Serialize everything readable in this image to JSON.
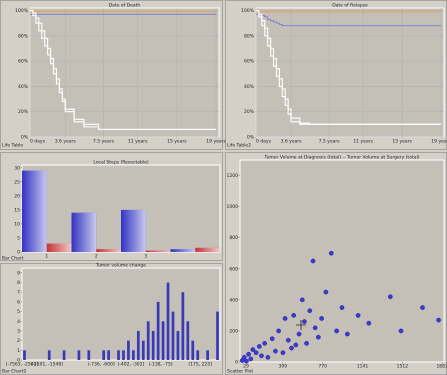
{
  "panels": [
    "Life Table",
    "Life Table2",
    "Bar Chart",
    "Bar Chart2",
    "Scatter Plot"
  ],
  "chart_data": [
    {
      "type": "line",
      "step": true,
      "title": "Date of Death",
      "x": [
        0,
        0.3,
        0.6,
        0.9,
        1.2,
        1.5,
        1.8,
        2.1,
        2.4,
        2.7,
        3,
        3.3,
        3.6,
        4.5,
        5.5,
        7,
        19
      ],
      "series": [
        {
          "color": "#e8a040",
          "values": [
            99,
            99,
            99,
            99,
            99,
            99,
            99,
            99,
            99,
            99,
            99,
            99,
            99,
            99,
            99,
            99,
            99
          ]
        },
        {
          "color": "#7a7ad8",
          "values": [
            97,
            97,
            97,
            97,
            97,
            97,
            97,
            97,
            97,
            97,
            97,
            97,
            97,
            97,
            97,
            97,
            97
          ]
        },
        {
          "color": "#ffffff",
          "values": [
            100,
            96,
            90,
            84,
            78,
            72,
            65,
            58,
            50,
            42,
            35,
            28,
            20,
            12,
            8,
            6,
            6
          ]
        },
        {
          "color": "#ffffff",
          "values": [
            100,
            98,
            94,
            90,
            84,
            78,
            70,
            62,
            54,
            46,
            38,
            30,
            22,
            14,
            10,
            6,
            6
          ]
        }
      ],
      "xlim": [
        0,
        19.3
      ],
      "xticks": [
        {
          "value": 0,
          "label": "0 days"
        },
        {
          "value": 3.6,
          "label": "3.6 years"
        },
        {
          "value": 7.5,
          "label": "7.5 years"
        },
        {
          "value": 11,
          "label": "11 years"
        },
        {
          "value": 15,
          "label": "15 years"
        },
        {
          "value": 19,
          "label": "19 years"
        }
      ],
      "ylim": [
        0,
        102
      ],
      "yticks": [
        {
          "value": 0,
          "label": "0%"
        },
        {
          "value": 20,
          "label": "20%"
        },
        {
          "value": 40,
          "label": "40%"
        },
        {
          "value": 60,
          "label": "60%"
        },
        {
          "value": 80,
          "label": "80%"
        },
        {
          "value": 100,
          "label": "100%"
        }
      ],
      "grid": true
    },
    {
      "type": "line",
      "step": true,
      "title": "Date of Relapse",
      "x": [
        0,
        0.3,
        0.6,
        0.9,
        1.2,
        1.5,
        1.8,
        2.1,
        2.4,
        2.7,
        3,
        3.3,
        3.6,
        4.5,
        5.5,
        7,
        19
      ],
      "series": [
        {
          "color": "#e8a040",
          "values": [
            99,
            99,
            99,
            99,
            99,
            99,
            99,
            99,
            99,
            99,
            99,
            99,
            99,
            99,
            99,
            99,
            99
          ]
        },
        {
          "color": "#7a7ad8",
          "values": [
            97,
            97,
            96,
            95,
            93,
            92,
            91,
            90,
            89,
            88,
            88,
            88,
            88,
            88,
            88,
            88,
            88
          ]
        },
        {
          "color": "#ffffff",
          "values": [
            100,
            95,
            88,
            80,
            72,
            64,
            56,
            48,
            40,
            32,
            25,
            18,
            12,
            10,
            10,
            10,
            10
          ]
        },
        {
          "color": "#ffffff",
          "values": [
            100,
            97,
            92,
            86,
            78,
            70,
            62,
            54,
            46,
            38,
            30,
            22,
            15,
            11,
            10,
            10,
            10
          ]
        }
      ],
      "xlim": [
        0,
        19.3
      ],
      "xticks": [
        {
          "value": 0,
          "label": "0 days"
        },
        {
          "value": 3.6,
          "label": "3.6 years"
        },
        {
          "value": 7.5,
          "label": "7.5 years"
        },
        {
          "value": 11,
          "label": "11 years"
        },
        {
          "value": 15,
          "label": "15 years"
        },
        {
          "value": 19,
          "label": "19 years"
        }
      ],
      "ylim": [
        0,
        102
      ],
      "yticks": [
        {
          "value": 0,
          "label": "0%"
        },
        {
          "value": 20,
          "label": "20%"
        },
        {
          "value": 40,
          "label": "40%"
        },
        {
          "value": 60,
          "label": "60%"
        },
        {
          "value": 80,
          "label": "80%"
        },
        {
          "value": 100,
          "label": "100%"
        }
      ],
      "grid": true
    },
    {
      "type": "bar",
      "title": "Local Steps (Resectable)",
      "categories": [
        "1",
        "2",
        "3",
        null
      ],
      "series": [
        {
          "color": "#2828c0",
          "values": [
            29,
            14,
            15,
            1
          ]
        },
        {
          "color": "#c02828",
          "values": [
            3,
            1,
            0.5,
            1.5
          ]
        }
      ],
      "ylim": [
        0,
        31
      ],
      "yticks": [
        0,
        5,
        10,
        15,
        20,
        25,
        30
      ],
      "grid": false
    },
    {
      "type": "bar",
      "title": "Tumor volume change",
      "categories": [
        "(-7563, -2545]",
        null,
        null,
        null,
        null,
        "(-2191, -1548]",
        null,
        null,
        null,
        null,
        null,
        null,
        null,
        null,
        null,
        null,
        "(-736, -600]",
        null,
        null,
        null,
        null,
        null,
        "(-402, -302]",
        null,
        null,
        null,
        null,
        null,
        "(-138, -75]",
        null,
        null,
        null,
        null,
        null,
        null,
        null,
        "(175, 225]",
        null,
        null,
        null
      ],
      "series": [
        {
          "color": "#3a3ab8",
          "values": [
            1,
            0,
            0,
            0,
            0,
            1,
            0,
            0,
            1,
            0,
            0,
            1,
            0,
            1,
            0,
            0,
            1,
            1,
            0,
            1,
            1,
            2,
            1,
            3,
            2,
            4,
            3,
            6,
            4,
            8,
            5,
            3,
            7,
            4,
            2,
            1,
            0,
            1,
            0,
            5
          ]
        }
      ],
      "ylim": [
        0,
        9.5
      ],
      "yticks": [
        0,
        1,
        2,
        3,
        4,
        5,
        6,
        7,
        8,
        9
      ],
      "grid": false
    },
    {
      "type": "scatter",
      "title": "Tumor Volume at Diagnosis (total) -- Tumor Volume at Surgery (total)",
      "x": [
        20,
        40,
        60,
        80,
        100,
        120,
        150,
        180,
        200,
        230,
        260,
        300,
        330,
        360,
        400,
        420,
        450,
        480,
        500,
        520,
        550,
        580,
        600,
        620,
        650,
        680,
        700,
        730,
        760,
        800,
        850,
        900,
        950,
        1000,
        1100,
        1200,
        1400,
        1500,
        1700,
        1850
      ],
      "series": [
        {
          "color": "#3a3ad0",
          "values": [
            10,
            30,
            5,
            50,
            20,
            80,
            60,
            100,
            40,
            120,
            30,
            150,
            70,
            200,
            60,
            280,
            140,
            90,
            300,
            110,
            180,
            400,
            260,
            120,
            330,
            650,
            220,
            160,
            280,
            450,
            700,
            200,
            350,
            180,
            300,
            250,
            420,
            200,
            350,
            270
          ]
        }
      ],
      "xlim": [
        0,
        1900
      ],
      "xticks": [
        29,
        399,
        770,
        1141,
        1512,
        1883
      ],
      "ylim": [
        0,
        1300
      ],
      "yticks": [
        0,
        200,
        400,
        600,
        800,
        1000,
        1200
      ],
      "grid": false
    }
  ]
}
